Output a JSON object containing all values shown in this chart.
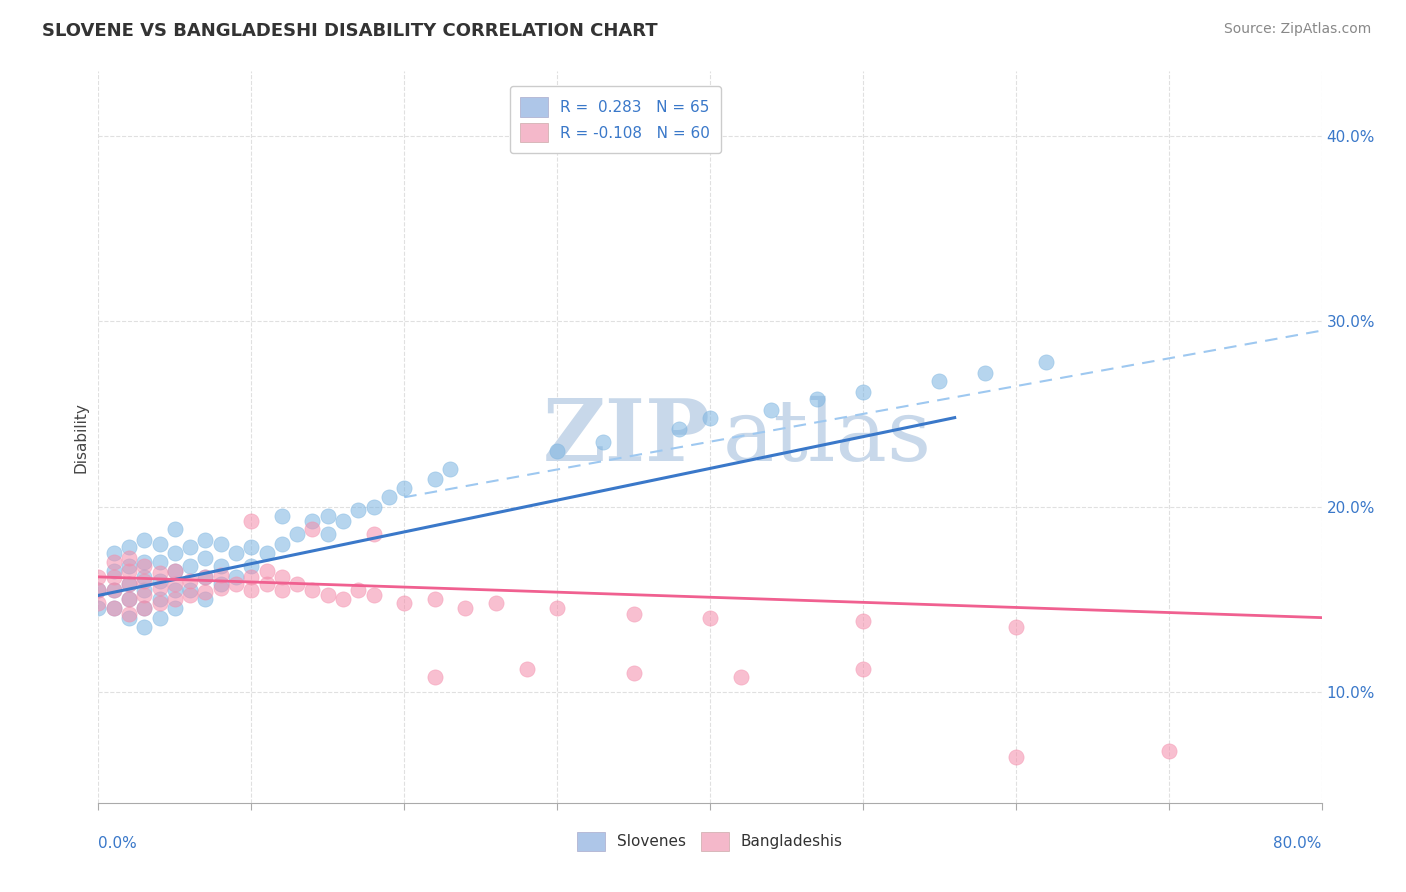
{
  "title": "SLOVENE VS BANGLADESHI DISABILITY CORRELATION CHART",
  "source_text": "Source: ZipAtlas.com",
  "ylabel": "Disability",
  "ylabel_right_ticks": [
    "10.0%",
    "20.0%",
    "30.0%",
    "40.0%"
  ],
  "ylabel_right_vals": [
    0.1,
    0.2,
    0.3,
    0.4
  ],
  "xmin": 0.0,
  "xmax": 0.8,
  "ymin": 0.04,
  "ymax": 0.435,
  "slovene_scatter_color": "#7ab3e0",
  "bangladeshi_scatter_color": "#f48caa",
  "trend_slovene_color": "#3a78c9",
  "trend_bangladeshi_color": "#f06090",
  "dashed_line_color": "#9ec8f0",
  "watermark_color": "#c8d8ea",
  "grid_color": "#e0e0e0",
  "grid_style": "--",
  "background_color": "#ffffff",
  "slovene_trend_x": [
    0.0,
    0.56
  ],
  "slovene_trend_y": [
    0.152,
    0.248
  ],
  "bangladeshi_trend_x": [
    0.0,
    0.8
  ],
  "bangladeshi_trend_y": [
    0.162,
    0.14
  ],
  "dashed_trend_x": [
    0.2,
    0.8
  ],
  "dashed_trend_y": [
    0.205,
    0.295
  ],
  "slovene_x": [
    0.0,
    0.0,
    0.01,
    0.01,
    0.01,
    0.01,
    0.02,
    0.02,
    0.02,
    0.02,
    0.02,
    0.03,
    0.03,
    0.03,
    0.03,
    0.03,
    0.03,
    0.04,
    0.04,
    0.04,
    0.04,
    0.04,
    0.05,
    0.05,
    0.05,
    0.05,
    0.05,
    0.06,
    0.06,
    0.06,
    0.07,
    0.07,
    0.07,
    0.07,
    0.08,
    0.08,
    0.08,
    0.09,
    0.09,
    0.1,
    0.1,
    0.11,
    0.12,
    0.12,
    0.13,
    0.14,
    0.15,
    0.15,
    0.16,
    0.17,
    0.18,
    0.19,
    0.2,
    0.22,
    0.23,
    0.3,
    0.33,
    0.38,
    0.4,
    0.44,
    0.47,
    0.5,
    0.55,
    0.58,
    0.62
  ],
  "slovene_y": [
    0.145,
    0.155,
    0.145,
    0.155,
    0.165,
    0.175,
    0.14,
    0.15,
    0.158,
    0.168,
    0.178,
    0.135,
    0.145,
    0.155,
    0.162,
    0.17,
    0.182,
    0.14,
    0.15,
    0.16,
    0.17,
    0.18,
    0.145,
    0.155,
    0.165,
    0.175,
    0.188,
    0.155,
    0.168,
    0.178,
    0.15,
    0.162,
    0.172,
    0.182,
    0.158,
    0.168,
    0.18,
    0.162,
    0.175,
    0.168,
    0.178,
    0.175,
    0.18,
    0.195,
    0.185,
    0.192,
    0.185,
    0.195,
    0.192,
    0.198,
    0.2,
    0.205,
    0.21,
    0.215,
    0.22,
    0.23,
    0.235,
    0.242,
    0.248,
    0.252,
    0.258,
    0.262,
    0.268,
    0.272,
    0.278
  ],
  "bangladeshi_x": [
    0.0,
    0.0,
    0.0,
    0.01,
    0.01,
    0.01,
    0.01,
    0.02,
    0.02,
    0.02,
    0.02,
    0.02,
    0.03,
    0.03,
    0.03,
    0.03,
    0.04,
    0.04,
    0.04,
    0.05,
    0.05,
    0.05,
    0.06,
    0.06,
    0.07,
    0.07,
    0.08,
    0.08,
    0.09,
    0.1,
    0.1,
    0.11,
    0.11,
    0.12,
    0.12,
    0.13,
    0.14,
    0.15,
    0.16,
    0.17,
    0.18,
    0.2,
    0.22,
    0.24,
    0.26,
    0.3,
    0.35,
    0.4,
    0.5,
    0.6,
    0.1,
    0.14,
    0.18,
    0.22,
    0.28,
    0.35,
    0.42,
    0.5,
    0.6,
    0.7
  ],
  "bangladeshi_y": [
    0.148,
    0.155,
    0.162,
    0.145,
    0.155,
    0.162,
    0.17,
    0.142,
    0.15,
    0.158,
    0.165,
    0.172,
    0.145,
    0.152,
    0.16,
    0.168,
    0.148,
    0.156,
    0.164,
    0.15,
    0.158,
    0.165,
    0.152,
    0.16,
    0.154,
    0.162,
    0.156,
    0.163,
    0.158,
    0.155,
    0.162,
    0.158,
    0.165,
    0.155,
    0.162,
    0.158,
    0.155,
    0.152,
    0.15,
    0.155,
    0.152,
    0.148,
    0.15,
    0.145,
    0.148,
    0.145,
    0.142,
    0.14,
    0.138,
    0.135,
    0.192,
    0.188,
    0.185,
    0.108,
    0.112,
    0.11,
    0.108,
    0.112,
    0.065,
    0.068
  ]
}
